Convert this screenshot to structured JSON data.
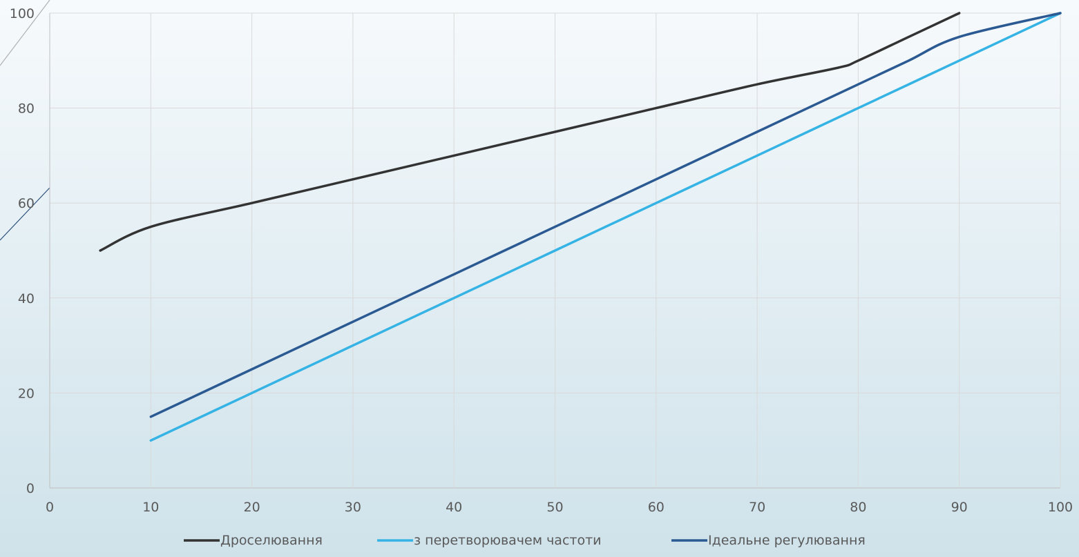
{
  "chart_data": {
    "type": "line",
    "x_ticks": [
      "0",
      "10",
      "20",
      "30",
      "40",
      "50",
      "60",
      "70",
      "80",
      "90",
      "100"
    ],
    "y_ticks": [
      "0",
      "20",
      "40",
      "60",
      "80",
      "100"
    ],
    "xlim": [
      0,
      100
    ],
    "ylim": [
      0,
      100
    ],
    "grid": true,
    "legend_position": "bottom",
    "series": [
      {
        "name": "Дроселювання",
        "color": "#333333",
        "points": [
          [
            5,
            50
          ],
          [
            10,
            55
          ],
          [
            20,
            60
          ],
          [
            30,
            65
          ],
          [
            40,
            70
          ],
          [
            50,
            75
          ],
          [
            60,
            80
          ],
          [
            70,
            85
          ],
          [
            78,
            88.5
          ],
          [
            80,
            90
          ],
          [
            85,
            95
          ],
          [
            90,
            100
          ]
        ]
      },
      {
        "name": "з перетворювачем частоти",
        "color": "#35b3e4",
        "points": [
          [
            10,
            10
          ],
          [
            20,
            20
          ],
          [
            30,
            30
          ],
          [
            40,
            40
          ],
          [
            50,
            50
          ],
          [
            60,
            60
          ],
          [
            70,
            70
          ],
          [
            80,
            80
          ],
          [
            90,
            90
          ],
          [
            100,
            100
          ]
        ]
      },
      {
        "name": "Ідеальне регулювання",
        "color": "#2b5a93",
        "points": [
          [
            10,
            15
          ],
          [
            20,
            25
          ],
          [
            30,
            35
          ],
          [
            40,
            45
          ],
          [
            50,
            55
          ],
          [
            60,
            65
          ],
          [
            70,
            75
          ],
          [
            80,
            85
          ],
          [
            85,
            90
          ],
          [
            90,
            95
          ],
          [
            100,
            100
          ]
        ]
      }
    ]
  }
}
